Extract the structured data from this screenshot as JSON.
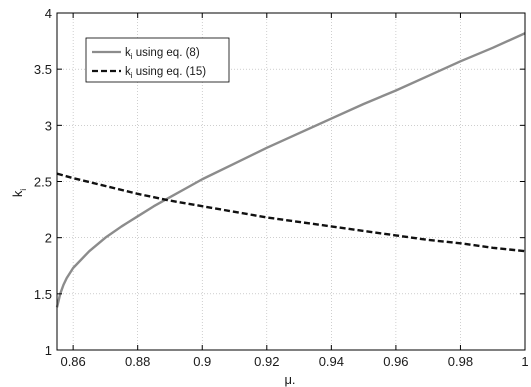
{
  "chart_data": {
    "type": "line",
    "xlabel": "μ.",
    "ylabel_main": "k",
    "ylabel_sub": "i",
    "xlim": [
      0.855,
      1.0
    ],
    "ylim": [
      1,
      4
    ],
    "xticks": [
      0.86,
      0.88,
      0.9,
      0.92,
      0.94,
      0.96,
      0.98,
      1
    ],
    "xtick_labels": [
      "0.86",
      "0.88",
      "0.9",
      "0.92",
      "0.94",
      "0.96",
      "0.98",
      "1"
    ],
    "yticks": [
      1,
      1.5,
      2,
      2.5,
      3,
      3.5,
      4
    ],
    "ytick_labels": [
      "1",
      "1.5",
      "2",
      "2.5",
      "3",
      "3.5",
      "4"
    ],
    "grid": true,
    "legend_position": "top-left",
    "series": [
      {
        "name_main": "k",
        "name_sub": "i",
        "name_rest": " using eq. (8)",
        "color": "#8c8c8c",
        "style": "solid",
        "x": [
          0.855,
          0.856,
          0.857,
          0.858,
          0.86,
          0.865,
          0.87,
          0.875,
          0.88,
          0.885,
          0.89,
          0.895,
          0.9,
          0.91,
          0.92,
          0.93,
          0.94,
          0.95,
          0.96,
          0.97,
          0.98,
          0.99,
          1.0
        ],
        "y": [
          1.38,
          1.5,
          1.58,
          1.64,
          1.73,
          1.88,
          2.0,
          2.1,
          2.19,
          2.28,
          2.36,
          2.44,
          2.52,
          2.66,
          2.8,
          2.93,
          3.06,
          3.19,
          3.31,
          3.44,
          3.57,
          3.69,
          3.82
        ]
      },
      {
        "name_main": "k",
        "name_sub": "i",
        "name_rest": " using eq. (15)",
        "color": "#111111",
        "style": "dashed",
        "x": [
          0.855,
          0.86,
          0.87,
          0.88,
          0.89,
          0.9,
          0.91,
          0.92,
          0.93,
          0.94,
          0.95,
          0.96,
          0.97,
          0.98,
          0.99,
          1.0
        ],
        "y": [
          2.57,
          2.53,
          2.46,
          2.39,
          2.33,
          2.28,
          2.23,
          2.18,
          2.14,
          2.1,
          2.06,
          2.02,
          1.98,
          1.95,
          1.91,
          1.88
        ]
      }
    ]
  }
}
